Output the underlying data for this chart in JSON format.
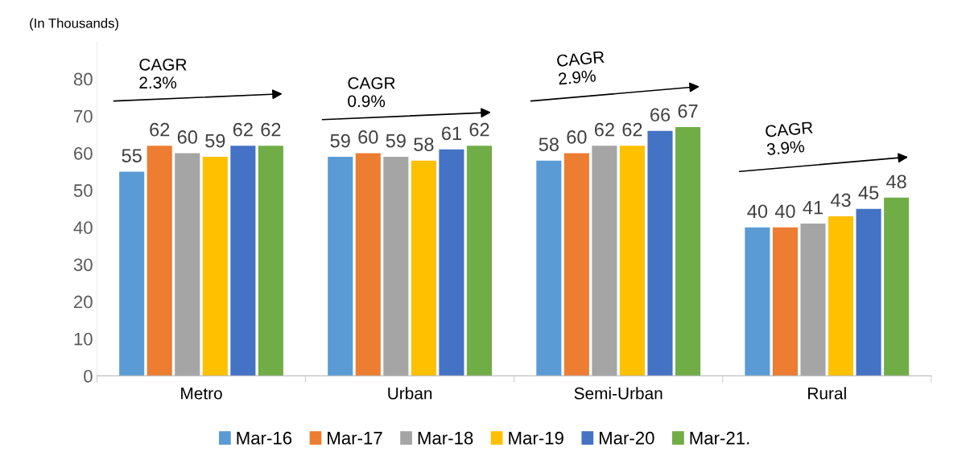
{
  "chart_data": {
    "type": "bar",
    "ylabel": "(In Thousands)",
    "categories": [
      "Metro",
      "Urban",
      "Semi-Urban",
      "Rural"
    ],
    "series": [
      {
        "name": "Mar-16",
        "color": "#5b9bd5",
        "values": [
          55,
          59,
          58,
          40
        ]
      },
      {
        "name": "Mar-17",
        "color": "#ed7d31",
        "values": [
          62,
          60,
          60,
          40
        ]
      },
      {
        "name": "Mar-18",
        "color": "#a5a5a5",
        "values": [
          60,
          59,
          62,
          41
        ]
      },
      {
        "name": "Mar-19",
        "color": "#ffc000",
        "values": [
          59,
          58,
          62,
          43
        ]
      },
      {
        "name": "Mar-20",
        "color": "#4472c4",
        "values": [
          62,
          61,
          66,
          45
        ]
      },
      {
        "name": "Mar-21.",
        "color": "#70ad47",
        "values": [
          62,
          62,
          67,
          48
        ]
      }
    ],
    "annotations": [
      "CAGR\n2.3%",
      "CAGR\n0.9%",
      "CAGR\n2.9%",
      "CAGR\n3.9%"
    ],
    "ylim": [
      0,
      90
    ],
    "yticks": [
      0,
      10,
      20,
      30,
      40,
      50,
      60,
      70,
      80
    ],
    "data_labels": true,
    "grid": false,
    "legend": "bottom"
  }
}
